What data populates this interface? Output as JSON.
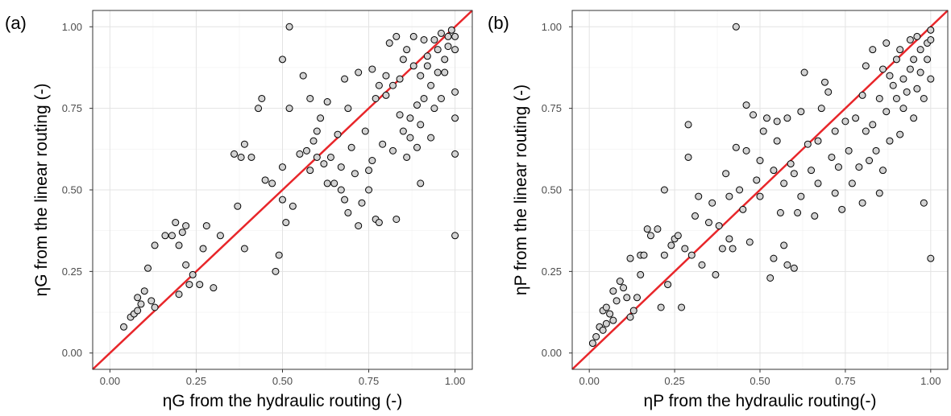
{
  "chart_data": [
    {
      "panel_label": "(a)",
      "type": "scatter",
      "xlabel": "ηG from the hydraulic routing (-)",
      "ylabel": "ηG from the linear routing (-)",
      "xlim": [
        -0.05,
        1.05
      ],
      "ylim": [
        -0.05,
        1.05
      ],
      "x_ticks": [
        0.0,
        0.25,
        0.5,
        0.75,
        1.0
      ],
      "x_tick_labels": [
        "0.00",
        "0.25",
        "0.50",
        "0.75",
        "1.00"
      ],
      "y_ticks": [
        0.0,
        0.25,
        0.5,
        0.75,
        1.0
      ],
      "y_tick_labels": [
        "0.00",
        "0.25",
        "0.50",
        "0.75",
        "1.00"
      ],
      "grid": true,
      "reference_line": {
        "slope": 1,
        "intercept": 0,
        "color": "#e8262a"
      },
      "marker_fill": "#d3d3d3",
      "marker_edge": "#000000",
      "points": [
        [
          0.04,
          0.08
        ],
        [
          0.06,
          0.11
        ],
        [
          0.07,
          0.12
        ],
        [
          0.08,
          0.13
        ],
        [
          0.08,
          0.17
        ],
        [
          0.09,
          0.15
        ],
        [
          0.1,
          0.19
        ],
        [
          0.11,
          0.26
        ],
        [
          0.12,
          0.16
        ],
        [
          0.13,
          0.14
        ],
        [
          0.13,
          0.33
        ],
        [
          0.16,
          0.36
        ],
        [
          0.18,
          0.36
        ],
        [
          0.19,
          0.4
        ],
        [
          0.2,
          0.18
        ],
        [
          0.2,
          0.33
        ],
        [
          0.21,
          0.37
        ],
        [
          0.22,
          0.27
        ],
        [
          0.22,
          0.39
        ],
        [
          0.23,
          0.21
        ],
        [
          0.24,
          0.24
        ],
        [
          0.26,
          0.21
        ],
        [
          0.27,
          0.32
        ],
        [
          0.28,
          0.39
        ],
        [
          0.3,
          0.2
        ],
        [
          0.32,
          0.36
        ],
        [
          0.36,
          0.61
        ],
        [
          0.37,
          0.45
        ],
        [
          0.38,
          0.6
        ],
        [
          0.39,
          0.64
        ],
        [
          0.39,
          0.32
        ],
        [
          0.41,
          0.6
        ],
        [
          0.43,
          0.75
        ],
        [
          0.44,
          0.78
        ],
        [
          0.45,
          0.53
        ],
        [
          0.47,
          0.52
        ],
        [
          0.48,
          0.25
        ],
        [
          0.49,
          0.3
        ],
        [
          0.5,
          0.57
        ],
        [
          0.5,
          0.47
        ],
        [
          0.5,
          0.9
        ],
        [
          0.51,
          0.4
        ],
        [
          0.52,
          0.75
        ],
        [
          0.52,
          1.0
        ],
        [
          0.53,
          0.45
        ],
        [
          0.55,
          0.61
        ],
        [
          0.56,
          0.85
        ],
        [
          0.57,
          0.62
        ],
        [
          0.58,
          0.56
        ],
        [
          0.58,
          0.78
        ],
        [
          0.59,
          0.65
        ],
        [
          0.6,
          0.6
        ],
        [
          0.6,
          0.68
        ],
        [
          0.61,
          0.72
        ],
        [
          0.62,
          0.58
        ],
        [
          0.63,
          0.52
        ],
        [
          0.63,
          0.77
        ],
        [
          0.64,
          0.6
        ],
        [
          0.65,
          0.52
        ],
        [
          0.66,
          0.67
        ],
        [
          0.67,
          0.5
        ],
        [
          0.67,
          0.57
        ],
        [
          0.68,
          0.47
        ],
        [
          0.68,
          0.84
        ],
        [
          0.69,
          0.43
        ],
        [
          0.69,
          0.75
        ],
        [
          0.7,
          0.63
        ],
        [
          0.71,
          0.55
        ],
        [
          0.72,
          0.39
        ],
        [
          0.72,
          0.86
        ],
        [
          0.73,
          0.46
        ],
        [
          0.74,
          0.68
        ],
        [
          0.75,
          0.5
        ],
        [
          0.75,
          0.56
        ],
        [
          0.76,
          0.59
        ],
        [
          0.76,
          0.87
        ],
        [
          0.77,
          0.41
        ],
        [
          0.77,
          0.78
        ],
        [
          0.78,
          0.4
        ],
        [
          0.78,
          0.82
        ],
        [
          0.79,
          0.64
        ],
        [
          0.8,
          0.79
        ],
        [
          0.8,
          0.85
        ],
        [
          0.81,
          0.95
        ],
        [
          0.82,
          0.62
        ],
        [
          0.82,
          0.82
        ],
        [
          0.83,
          0.97
        ],
        [
          0.83,
          0.41
        ],
        [
          0.84,
          0.73
        ],
        [
          0.84,
          0.84
        ],
        [
          0.85,
          0.9
        ],
        [
          0.85,
          0.68
        ],
        [
          0.86,
          0.6
        ],
        [
          0.86,
          0.93
        ],
        [
          0.87,
          0.66
        ],
        [
          0.87,
          0.72
        ],
        [
          0.88,
          0.88
        ],
        [
          0.88,
          0.97
        ],
        [
          0.89,
          0.76
        ],
        [
          0.89,
          0.63
        ],
        [
          0.9,
          0.52
        ],
        [
          0.9,
          0.7
        ],
        [
          0.9,
          0.85
        ],
        [
          0.91,
          0.96
        ],
        [
          0.91,
          0.78
        ],
        [
          0.92,
          0.88
        ],
        [
          0.92,
          0.91
        ],
        [
          0.93,
          0.66
        ],
        [
          0.93,
          0.82
        ],
        [
          0.94,
          0.96
        ],
        [
          0.94,
          0.75
        ],
        [
          0.95,
          0.86
        ],
        [
          0.95,
          0.93
        ],
        [
          0.96,
          0.78
        ],
        [
          0.96,
          0.98
        ],
        [
          0.97,
          0.86
        ],
        [
          0.97,
          0.9
        ],
        [
          0.98,
          0.94
        ],
        [
          0.98,
          0.97
        ],
        [
          0.99,
          0.99
        ],
        [
          1.0,
          0.97
        ],
        [
          1.0,
          0.93
        ],
        [
          1.0,
          0.61
        ],
        [
          1.0,
          0.36
        ],
        [
          1.0,
          0.72
        ],
        [
          1.0,
          0.8
        ]
      ]
    },
    {
      "panel_label": "(b)",
      "type": "scatter",
      "xlabel": "ηP from the hydraulic routing(-)",
      "ylabel": "ηP from the linear routing (-)",
      "xlim": [
        -0.05,
        1.05
      ],
      "ylim": [
        -0.05,
        1.05
      ],
      "x_ticks": [
        0.0,
        0.25,
        0.5,
        0.75,
        1.0
      ],
      "x_tick_labels": [
        "0.00",
        "0.25",
        "0.50",
        "0.75",
        "1.00"
      ],
      "y_ticks": [
        0.0,
        0.25,
        0.5,
        0.75,
        1.0
      ],
      "y_tick_labels": [
        "0.00",
        "0.25",
        "0.50",
        "0.75",
        "1.00"
      ],
      "grid": true,
      "reference_line": {
        "slope": 1,
        "intercept": 0,
        "color": "#e8262a"
      },
      "marker_fill": "#d3d3d3",
      "marker_edge": "#000000",
      "points": [
        [
          0.01,
          0.03
        ],
        [
          0.02,
          0.05
        ],
        [
          0.03,
          0.08
        ],
        [
          0.04,
          0.07
        ],
        [
          0.04,
          0.13
        ],
        [
          0.05,
          0.09
        ],
        [
          0.05,
          0.14
        ],
        [
          0.06,
          0.12
        ],
        [
          0.07,
          0.1
        ],
        [
          0.07,
          0.19
        ],
        [
          0.08,
          0.16
        ],
        [
          0.09,
          0.22
        ],
        [
          0.1,
          0.2
        ],
        [
          0.11,
          0.17
        ],
        [
          0.12,
          0.29
        ],
        [
          0.12,
          0.11
        ],
        [
          0.13,
          0.13
        ],
        [
          0.14,
          0.17
        ],
        [
          0.15,
          0.3
        ],
        [
          0.15,
          0.24
        ],
        [
          0.16,
          0.3
        ],
        [
          0.17,
          0.38
        ],
        [
          0.18,
          0.36
        ],
        [
          0.2,
          0.38
        ],
        [
          0.21,
          0.14
        ],
        [
          0.22,
          0.3
        ],
        [
          0.22,
          0.5
        ],
        [
          0.23,
          0.21
        ],
        [
          0.24,
          0.33
        ],
        [
          0.25,
          0.35
        ],
        [
          0.26,
          0.36
        ],
        [
          0.27,
          0.14
        ],
        [
          0.28,
          0.32
        ],
        [
          0.29,
          0.7
        ],
        [
          0.29,
          0.6
        ],
        [
          0.3,
          0.3
        ],
        [
          0.31,
          0.42
        ],
        [
          0.32,
          0.48
        ],
        [
          0.33,
          0.27
        ],
        [
          0.35,
          0.4
        ],
        [
          0.36,
          0.46
        ],
        [
          0.37,
          0.24
        ],
        [
          0.38,
          0.39
        ],
        [
          0.39,
          0.32
        ],
        [
          0.4,
          0.55
        ],
        [
          0.41,
          0.48
        ],
        [
          0.41,
          0.35
        ],
        [
          0.42,
          0.32
        ],
        [
          0.43,
          0.63
        ],
        [
          0.43,
          1.0
        ],
        [
          0.44,
          0.5
        ],
        [
          0.45,
          0.44
        ],
        [
          0.46,
          0.62
        ],
        [
          0.46,
          0.76
        ],
        [
          0.47,
          0.34
        ],
        [
          0.48,
          0.73
        ],
        [
          0.49,
          0.53
        ],
        [
          0.5,
          0.48
        ],
        [
          0.5,
          0.59
        ],
        [
          0.51,
          0.68
        ],
        [
          0.52,
          0.72
        ],
        [
          0.53,
          0.23
        ],
        [
          0.54,
          0.56
        ],
        [
          0.54,
          0.29
        ],
        [
          0.55,
          0.65
        ],
        [
          0.55,
          0.71
        ],
        [
          0.56,
          0.43
        ],
        [
          0.57,
          0.33
        ],
        [
          0.57,
          0.52
        ],
        [
          0.58,
          0.27
        ],
        [
          0.58,
          0.72
        ],
        [
          0.59,
          0.58
        ],
        [
          0.6,
          0.26
        ],
        [
          0.6,
          0.55
        ],
        [
          0.61,
          0.43
        ],
        [
          0.62,
          0.48
        ],
        [
          0.62,
          0.74
        ],
        [
          0.63,
          0.86
        ],
        [
          0.64,
          0.64
        ],
        [
          0.65,
          0.56
        ],
        [
          0.66,
          0.42
        ],
        [
          0.67,
          0.52
        ],
        [
          0.67,
          0.65
        ],
        [
          0.68,
          0.75
        ],
        [
          0.69,
          0.83
        ],
        [
          0.7,
          0.8
        ],
        [
          0.71,
          0.6
        ],
        [
          0.72,
          0.49
        ],
        [
          0.72,
          0.68
        ],
        [
          0.73,
          0.57
        ],
        [
          0.74,
          0.44
        ],
        [
          0.75,
          0.71
        ],
        [
          0.76,
          0.62
        ],
        [
          0.77,
          0.52
        ],
        [
          0.78,
          0.72
        ],
        [
          0.79,
          0.57
        ],
        [
          0.8,
          0.79
        ],
        [
          0.8,
          0.46
        ],
        [
          0.81,
          0.68
        ],
        [
          0.81,
          0.88
        ],
        [
          0.82,
          0.59
        ],
        [
          0.83,
          0.7
        ],
        [
          0.83,
          0.93
        ],
        [
          0.84,
          0.62
        ],
        [
          0.85,
          0.49
        ],
        [
          0.85,
          0.78
        ],
        [
          0.86,
          0.56
        ],
        [
          0.86,
          0.87
        ],
        [
          0.87,
          0.74
        ],
        [
          0.87,
          0.95
        ],
        [
          0.88,
          0.85
        ],
        [
          0.88,
          0.65
        ],
        [
          0.89,
          0.82
        ],
        [
          0.9,
          0.9
        ],
        [
          0.9,
          0.78
        ],
        [
          0.91,
          0.67
        ],
        [
          0.91,
          0.93
        ],
        [
          0.92,
          0.75
        ],
        [
          0.92,
          0.84
        ],
        [
          0.93,
          0.8
        ],
        [
          0.94,
          0.96
        ],
        [
          0.94,
          0.87
        ],
        [
          0.95,
          0.72
        ],
        [
          0.95,
          0.9
        ],
        [
          0.96,
          0.81
        ],
        [
          0.96,
          0.97
        ],
        [
          0.97,
          0.86
        ],
        [
          0.97,
          0.93
        ],
        [
          0.98,
          0.46
        ],
        [
          0.98,
          0.78
        ],
        [
          0.99,
          0.95
        ],
        [
          0.99,
          0.9
        ],
        [
          1.0,
          0.99
        ],
        [
          1.0,
          0.29
        ],
        [
          1.0,
          0.84
        ],
        [
          1.0,
          0.96
        ]
      ]
    }
  ]
}
